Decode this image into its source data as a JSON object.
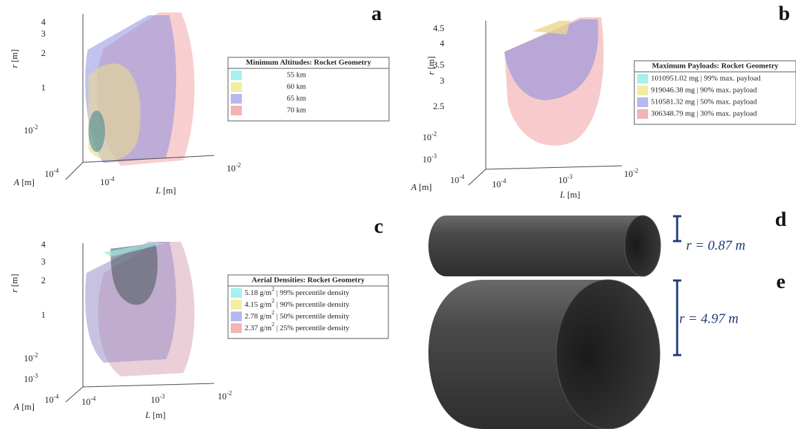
{
  "panels": [
    {
      "label": "a",
      "r_ticks": [
        "4",
        "3",
        "2",
        "1",
        {
          "base": "10",
          "exp": "-2"
        }
      ],
      "a_ticks": [
        {
          "base": "10",
          "exp": "-4"
        }
      ],
      "l_ticks": [
        {
          "base": "10",
          "exp": "-4"
        },
        {
          "base": "10",
          "exp": "-2"
        }
      ],
      "axis_labels": {
        "r": {
          "symbol": "r",
          "unit": "[m]"
        },
        "a": {
          "symbol": "A",
          "unit": "[m]"
        },
        "l": {
          "symbol": "L",
          "unit": "[m]"
        }
      },
      "legend": {
        "title": "Minimum Altitudes: Rocket Geometry",
        "entries": [
          "55 km",
          "60 km",
          "65 km",
          "70 km"
        ]
      }
    },
    {
      "label": "b",
      "r_ticks": [
        "4.5",
        "4",
        "3.5",
        "3",
        "2.5",
        {
          "base": "10",
          "exp": "-2"
        },
        {
          "base": "10",
          "exp": "-3"
        }
      ],
      "a_ticks": [
        {
          "base": "10",
          "exp": "-4"
        }
      ],
      "l_ticks": [
        {
          "base": "10",
          "exp": "-4"
        },
        {
          "base": "10",
          "exp": "-3"
        },
        {
          "base": "10",
          "exp": "-2"
        }
      ],
      "axis_labels": {
        "r": {
          "symbol": "r",
          "unit": "[m]"
        },
        "a": {
          "symbol": "A",
          "unit": "[m]"
        },
        "l": {
          "symbol": "L",
          "unit": "[m]"
        }
      },
      "legend": {
        "title": "Maximum Payloads: Rocket Geometry",
        "entries": [
          "1010951.02 mg | 99% max. payload",
          "919046.38 mg | 90% max. payload",
          "510581.32 mg | 50% max. payload",
          "306348.79 mg | 30% max. payload"
        ]
      }
    },
    {
      "label": "c",
      "r_ticks": [
        "4",
        "3",
        "2",
        "1",
        {
          "base": "10",
          "exp": "-2"
        },
        {
          "base": "10",
          "exp": "-3"
        }
      ],
      "a_ticks": [
        {
          "base": "10",
          "exp": "-4"
        }
      ],
      "l_ticks": [
        {
          "base": "10",
          "exp": "-4"
        },
        {
          "base": "10",
          "exp": "-3"
        },
        {
          "base": "10",
          "exp": "-2"
        }
      ],
      "axis_labels": {
        "r": {
          "symbol": "r",
          "unit": "[m]"
        },
        "a": {
          "symbol": "A",
          "unit": "[m]"
        },
        "l": {
          "symbol": "L",
          "unit": "[m]"
        }
      },
      "legend": {
        "title": "Aerial Densities: Rocket Geometry",
        "entries": [
          {
            "value": "5.18 g/m",
            "exp": "2",
            "text": " | 99% percentile density"
          },
          {
            "value": "4.15 g/m",
            "exp": "2",
            "text": " | 90% percentile density"
          },
          {
            "value": "2.78 g/m",
            "exp": "2",
            "text": " | 50% percentile density"
          },
          {
            "value": "2.37 g/m",
            "exp": "2",
            "text": " | 25% percentile density"
          }
        ]
      }
    },
    {
      "label": "d",
      "radius_label": "r = 0.87 m"
    },
    {
      "label": "e",
      "radius_label": "r = 4.97 m"
    }
  ]
}
